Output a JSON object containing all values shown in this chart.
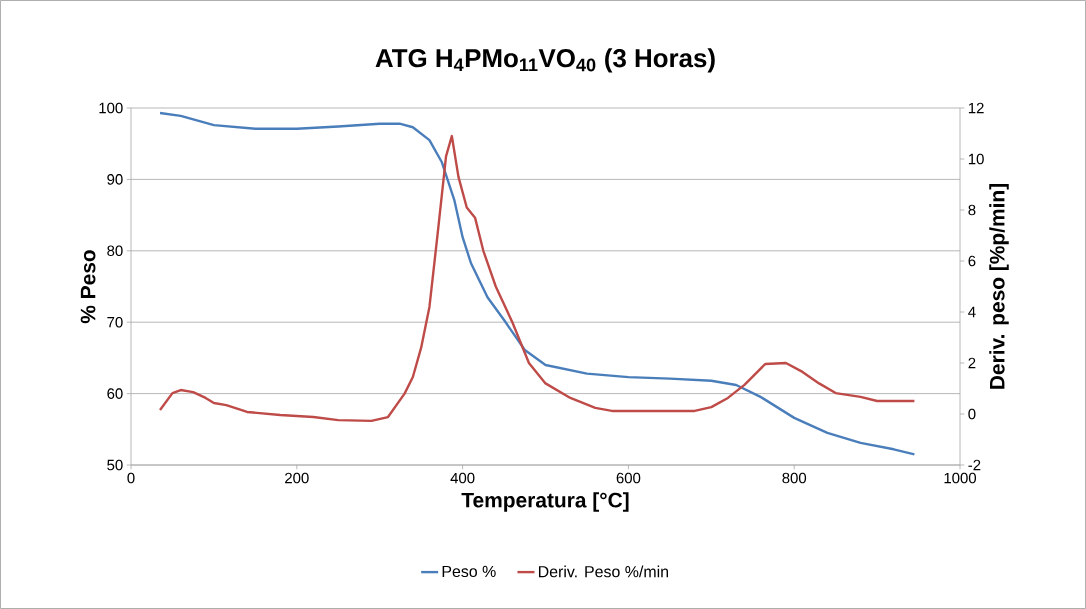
{
  "chart_data": {
    "type": "line",
    "title": "ATG  H$_{4}$PMo$_{11}$VO$_{40}$  (3 Horas)",
    "xlabel": "Temperatura [°C]",
    "ylabel": "% Peso",
    "y2label": "Deriv. peso [%p/min]",
    "xlim": [
      0,
      1000
    ],
    "xticks": [
      0,
      200,
      400,
      600,
      800,
      1000
    ],
    "ylim": [
      50,
      100
    ],
    "yticks": [
      50,
      60,
      70,
      80,
      90,
      100
    ],
    "y2lim": [
      -2,
      12
    ],
    "y2ticks": [
      -2,
      0,
      2,
      4,
      6,
      8,
      10,
      12
    ],
    "grid": "y",
    "legend": "bottom",
    "line_style": "solid",
    "marker": "none",
    "series": [
      {
        "name": "Peso %",
        "color": "#4a7ebb",
        "x": [
          35,
          60,
          100,
          150,
          200,
          250,
          300,
          324,
          340,
          360,
          375,
          390,
          400,
          410,
          430,
          450,
          475,
          500,
          550,
          600,
          650,
          700,
          730,
          760,
          800,
          840,
          880,
          920,
          945
        ],
        "values": [
          99.3,
          98.9,
          97.6,
          97.1,
          97.1,
          97.4,
          97.8,
          97.8,
          97.3,
          95.5,
          92.4,
          87.1,
          81.9,
          78.3,
          73.5,
          70.3,
          66.1,
          64.0,
          62.8,
          62.3,
          62.1,
          61.8,
          61.2,
          59.5,
          56.6,
          54.5,
          53.1,
          52.2,
          51.5
        ]
      },
      {
        "name": "Deriv. Peso %/min",
        "color": "#be4b48",
        "axis": "y2",
        "x": [
          35,
          50,
          60,
          75,
          90,
          100,
          115,
          140,
          180,
          220,
          250,
          290,
          310,
          330,
          340,
          350,
          360,
          370,
          380,
          387,
          395,
          405,
          415,
          425,
          440,
          460,
          480,
          500,
          530,
          560,
          580,
          620,
          680,
          700,
          720,
          740,
          765,
          790,
          810,
          830,
          850,
          880,
          900,
          945
        ],
        "values": [
          0.16,
          0.82,
          0.94,
          0.86,
          0.63,
          0.43,
          0.35,
          0.08,
          -0.04,
          -0.12,
          -0.24,
          -0.27,
          -0.12,
          0.8,
          1.45,
          2.6,
          4.2,
          7.1,
          10.1,
          10.9,
          9.3,
          8.1,
          7.7,
          6.4,
          5.0,
          3.6,
          2.0,
          1.2,
          0.63,
          0.24,
          0.12,
          0.12,
          0.12,
          0.27,
          0.63,
          1.14,
          1.96,
          2.0,
          1.65,
          1.2,
          0.82,
          0.67,
          0.51,
          0.51
        ]
      }
    ]
  }
}
